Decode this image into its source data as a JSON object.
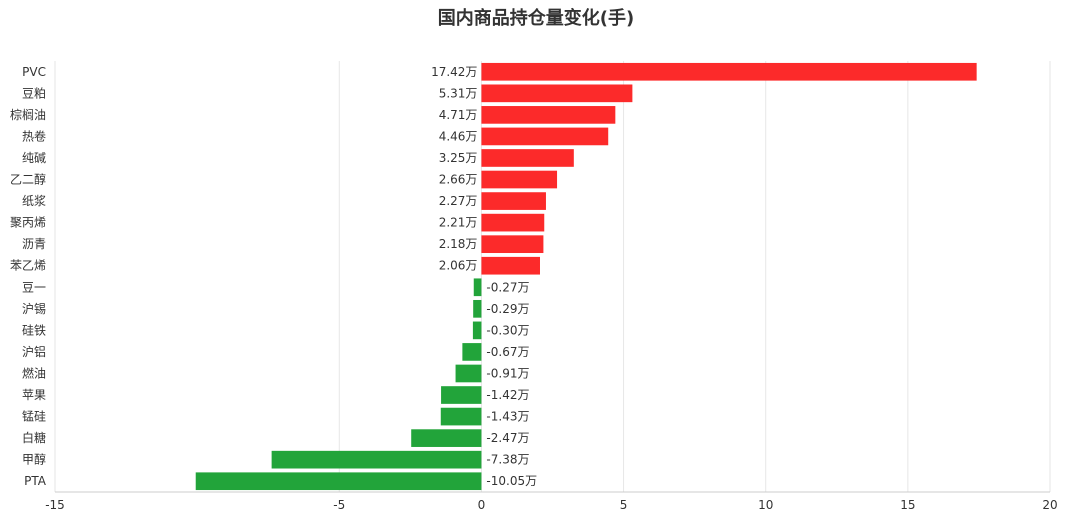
{
  "chart_data": {
    "type": "bar",
    "orientation": "horizontal",
    "title": "国内商品持仓量变化(手)",
    "xlabel": "",
    "ylabel": "",
    "xlim": [
      -15,
      20
    ],
    "xticks": [
      -15,
      -5,
      0,
      5,
      10,
      15,
      20
    ],
    "xtick_labels": [
      "-15",
      "-5",
      "0",
      "5",
      "10",
      "15",
      "20"
    ],
    "grid": true,
    "categories": [
      "PVC",
      "豆粕",
      "棕榈油",
      "热卷",
      "纯碱",
      "乙二醇",
      "纸浆",
      "聚丙烯",
      "沥青",
      "苯乙烯",
      "豆一",
      "沪锡",
      "硅铁",
      "沪铝",
      "燃油",
      "苹果",
      "锰硅",
      "白糖",
      "甲醇",
      "PTA"
    ],
    "values": [
      17.42,
      5.31,
      4.71,
      4.46,
      3.25,
      2.66,
      2.27,
      2.21,
      2.18,
      2.06,
      -0.27,
      -0.29,
      -0.3,
      -0.67,
      -0.91,
      -1.42,
      -1.43,
      -2.47,
      -7.38,
      -10.05
    ],
    "data_labels": [
      "17.42万",
      "5.31万",
      "4.71万",
      "4.46万",
      "3.25万",
      "2.66万",
      "2.27万",
      "2.21万",
      "2.18万",
      "2.06万",
      "-0.27万",
      "-0.29万",
      "-0.30万",
      "-0.67万",
      "-0.91万",
      "-1.42万",
      "-1.43万",
      "-2.47万",
      "-7.38万",
      "-10.05万"
    ],
    "colors": {
      "positive": "#fc2a2a",
      "negative": "#22a43a",
      "grid": "#e6e6e6",
      "axis": "#cccccc"
    }
  }
}
